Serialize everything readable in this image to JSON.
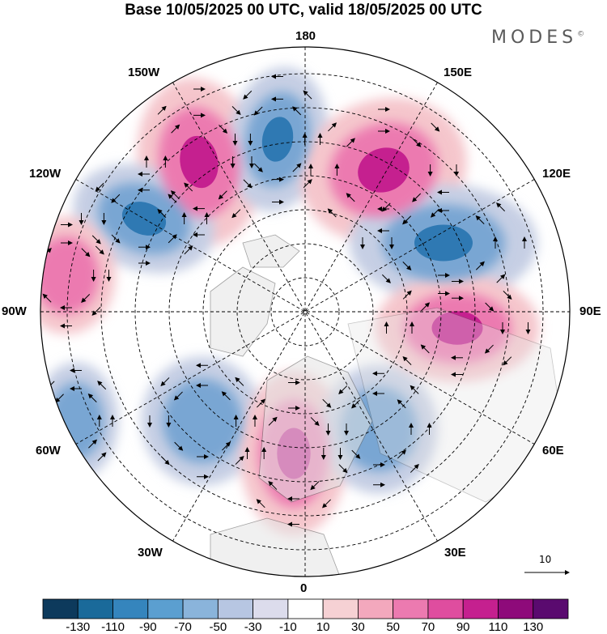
{
  "title": "Base 10/05/2025 00 UTC, valid 18/05/2025 00 UTC",
  "brand": "MODES",
  "brand_mark": "©",
  "lon_labels": {
    "l180": "180",
    "l150w": "150W",
    "l150e": "150E",
    "l120w": "120W",
    "l120e": "120E",
    "l90w": "90W",
    "l90e": "90E",
    "l60w": "60W",
    "l60e": "60E",
    "l30w": "30W",
    "l30e": "30E",
    "l0": "0"
  },
  "reference_vector": {
    "value": "10"
  },
  "colorbar": {
    "labels": [
      "-130",
      "-110",
      "-90",
      "-70",
      "-50",
      "-30",
      "-10",
      "10",
      "30",
      "50",
      "70",
      "90",
      "110",
      "130"
    ],
    "colors": [
      "#0d3a5c",
      "#1a6a9a",
      "#3585bd",
      "#5b9fd0",
      "#8ab4db",
      "#b7c6e2",
      "#dcdcec",
      "#ffffff",
      "#f6d1d4",
      "#f3a8bd",
      "#ec7ab0",
      "#df4d9f",
      "#c5208f",
      "#8e0a7a",
      "#5a0a6f"
    ]
  },
  "map_colors": {
    "land": "#e8e8e8",
    "ocean": "#ffffff",
    "neg_strong": "#2f79b3",
    "neg_mid": "#79a6d3",
    "neg_weak": "#c6cfe4",
    "pos_strong": "#c5208f",
    "pos_mid": "#ec7ab0",
    "pos_weak": "#f5c6cc"
  },
  "anomalies": [
    {
      "sign": "pos",
      "center": "150W",
      "peak": "130"
    },
    {
      "sign": "neg",
      "center": "170W",
      "peak": "-90"
    },
    {
      "sign": "pos",
      "center": "150E",
      "peak": "110"
    },
    {
      "sign": "neg",
      "center": "120W",
      "peak": "-110"
    },
    {
      "sign": "neg",
      "center": "120E",
      "peak": "-110"
    },
    {
      "sign": "pos",
      "center": "90E",
      "peak": "110"
    },
    {
      "sign": "pos",
      "center": "90W",
      "peak": "70"
    },
    {
      "sign": "neg",
      "center": "60W",
      "peak": "-70"
    },
    {
      "sign": "neg",
      "center": "40W",
      "peak": "-70"
    },
    {
      "sign": "pos",
      "center": "0",
      "peak": "110"
    },
    {
      "sign": "neg",
      "center": "30E",
      "peak": "-70"
    }
  ]
}
